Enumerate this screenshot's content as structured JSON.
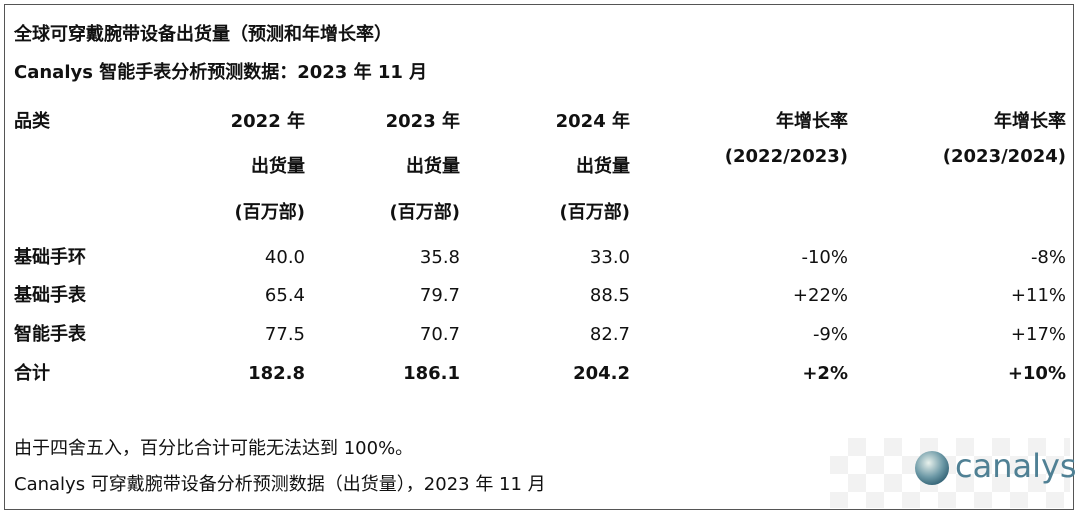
{
  "header": {
    "title": "全球可穿戴腕带设备出货量（预测和年增长率）",
    "subtitle": "Canalys 智能手表分析预测数据：2023 年 11 月"
  },
  "table": {
    "columns": [
      [
        "品类"
      ],
      [
        "2022 年",
        "出货量",
        "(百万部)"
      ],
      [
        "2023 年",
        "出货量",
        "(百万部)"
      ],
      [
        "2024 年",
        "出货量",
        "(百万部)"
      ],
      [
        "年增长率",
        "(2022/2023)"
      ],
      [
        "年增长率",
        "(2023/2024)"
      ]
    ],
    "rows": [
      [
        "基础手环",
        "40.0",
        "35.8",
        "33.0",
        "-10%",
        "-8%"
      ],
      [
        "基础手表",
        "65.4",
        "79.7",
        "88.5",
        "+22%",
        "+11%"
      ],
      [
        "智能手表",
        "77.5",
        "70.7",
        "82.7",
        "-9%",
        "+17%"
      ],
      [
        "合计",
        "182.8",
        "186.1",
        "204.2",
        "+2%",
        "+10%"
      ]
    ]
  },
  "notes": [
    "由于四舍五入，百分比合计可能无法达到 100%。",
    "Canalys 可穿戴腕带设备分析预测数据（出货量），2023 年 11 月"
  ],
  "logo": {
    "text": "canalys"
  }
}
